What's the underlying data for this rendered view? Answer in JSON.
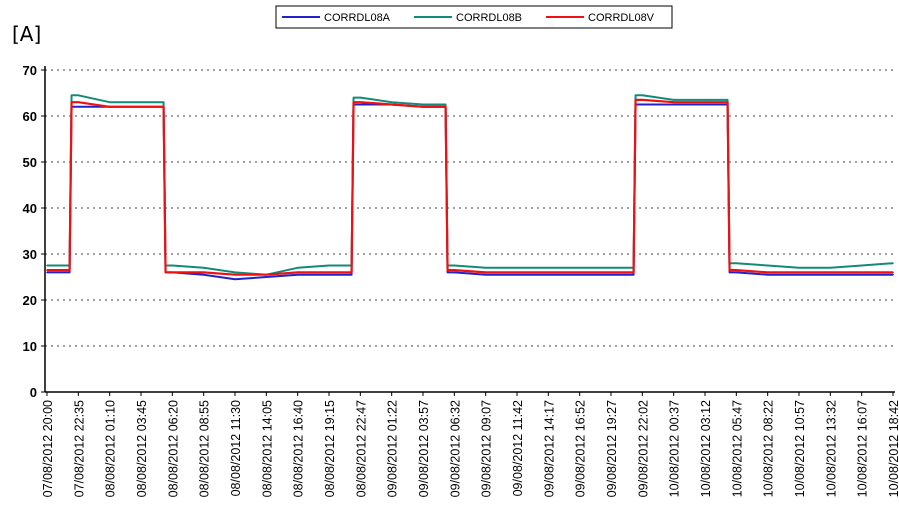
{
  "panel_label": "[A]",
  "chart_data": {
    "type": "line",
    "title": "",
    "xlabel": "",
    "ylabel": "",
    "ylim": [
      0,
      70
    ],
    "yticks": [
      0,
      10,
      20,
      30,
      40,
      50,
      60,
      70
    ],
    "grid": "horizontal-dotted",
    "legend": "top-center",
    "x": [
      "07/08/2012 20:00",
      "07/08/2012 22:35",
      "08/08/2012 01:10",
      "08/08/2012 03:45",
      "08/08/2012 06:20",
      "08/08/2012 08:55",
      "08/08/2012 11:30",
      "08/08/2012 14:05",
      "08/08/2012 16:40",
      "08/08/2012 19:15",
      "08/08/2012 22:47",
      "09/08/2012 01:22",
      "09/08/2012 03:57",
      "09/08/2012 06:32",
      "09/08/2012 09:07",
      "09/08/2012 11:42",
      "09/08/2012 14:17",
      "09/08/2012 16:52",
      "09/08/2012 19:27",
      "09/08/2012 22:02",
      "10/08/2012 00:37",
      "10/08/2012 03:12",
      "10/08/2012 05:47",
      "10/08/2012 08:22",
      "10/08/2012 10:57",
      "10/08/2012 13:32",
      "10/08/2012 16:07",
      "10/08/2012 18:42"
    ],
    "series": [
      {
        "name": "CORRDL08A",
        "color": "#2222cc",
        "values": [
          26,
          62,
          62,
          62,
          26,
          25.5,
          24.5,
          25,
          25.5,
          25.5,
          62.5,
          62.5,
          62,
          26,
          25.5,
          25.5,
          25.5,
          25.5,
          25.5,
          62.5,
          62.5,
          62.5,
          26,
          25.5,
          25.5,
          25.5,
          25.5,
          25.5
        ]
      },
      {
        "name": "CORRDL08B",
        "color": "#128a7a",
        "values": [
          27.5,
          64.5,
          63,
          63,
          27.5,
          27,
          26,
          25.5,
          27,
          27.5,
          64,
          63,
          62.5,
          27.5,
          27,
          27,
          27,
          27,
          27,
          64.5,
          63.5,
          63.5,
          28,
          27.5,
          27,
          27,
          27.5,
          28
        ]
      },
      {
        "name": "CORRDL08V",
        "color": "#ee1111",
        "values": [
          26.5,
          63,
          62,
          62,
          26,
          26,
          25.5,
          25.5,
          26,
          26,
          63,
          62.5,
          62,
          26.5,
          26,
          26,
          26,
          26,
          26,
          63.5,
          63,
          63,
          26.5,
          26,
          26,
          26,
          26,
          26
        ]
      }
    ]
  }
}
